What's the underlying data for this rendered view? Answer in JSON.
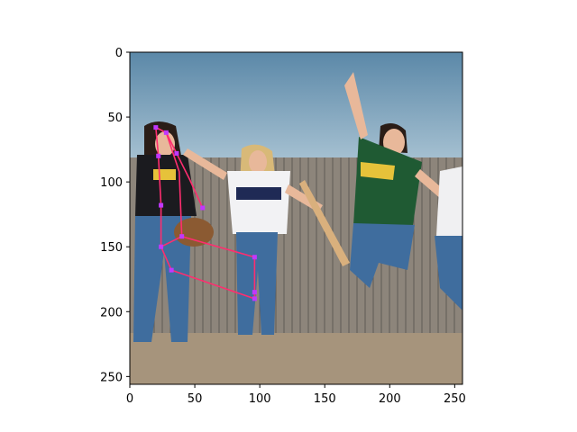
{
  "figure": {
    "x_ticks": [
      "0",
      "50",
      "100",
      "150",
      "200",
      "250"
    ],
    "y_ticks": [
      "0",
      "50",
      "100",
      "150",
      "200",
      "250"
    ],
    "x_range": [
      0,
      256
    ],
    "y_range": [
      256,
      0
    ]
  },
  "photo": {
    "palette": {
      "sky_top": "#5b88a8",
      "sky_bottom": "#a9c3d3",
      "fence": "#8d857b",
      "fence_dark": "#5f5a55",
      "ground": "#a6947c",
      "jersey_green": "#1f5a33",
      "jersey_gold": "#e6c23a",
      "denim": "#3f6d9e",
      "skin": "#e8b89a",
      "hair_dark": "#2a1d17",
      "hair_blond": "#d8b978"
    }
  },
  "pose_overlay": {
    "line_color": "#ff2d6f",
    "keypoint_color": "#c038ff",
    "skeleton": [
      [
        [
          20,
          58
        ],
        [
          28,
          62
        ],
        [
          36,
          78
        ],
        [
          46,
          98
        ],
        [
          56,
          120
        ]
      ],
      [
        [
          20,
          58
        ],
        [
          22,
          80
        ],
        [
          24,
          118
        ],
        [
          24,
          150
        ]
      ],
      [
        [
          28,
          62
        ],
        [
          38,
          92
        ],
        [
          40,
          142
        ]
      ],
      [
        [
          24,
          150
        ],
        [
          40,
          142
        ],
        [
          68,
          150
        ],
        [
          96,
          158
        ]
      ],
      [
        [
          24,
          150
        ],
        [
          32,
          168
        ],
        [
          96,
          190
        ]
      ],
      [
        [
          96,
          158
        ],
        [
          96,
          190
        ]
      ]
    ],
    "keypoints": [
      [
        20,
        58
      ],
      [
        28,
        62
      ],
      [
        22,
        80
      ],
      [
        36,
        78
      ],
      [
        56,
        120
      ],
      [
        24,
        118
      ],
      [
        24,
        150
      ],
      [
        40,
        142
      ],
      [
        96,
        158
      ],
      [
        32,
        168
      ],
      [
        96,
        185
      ],
      [
        96,
        190
      ]
    ]
  }
}
